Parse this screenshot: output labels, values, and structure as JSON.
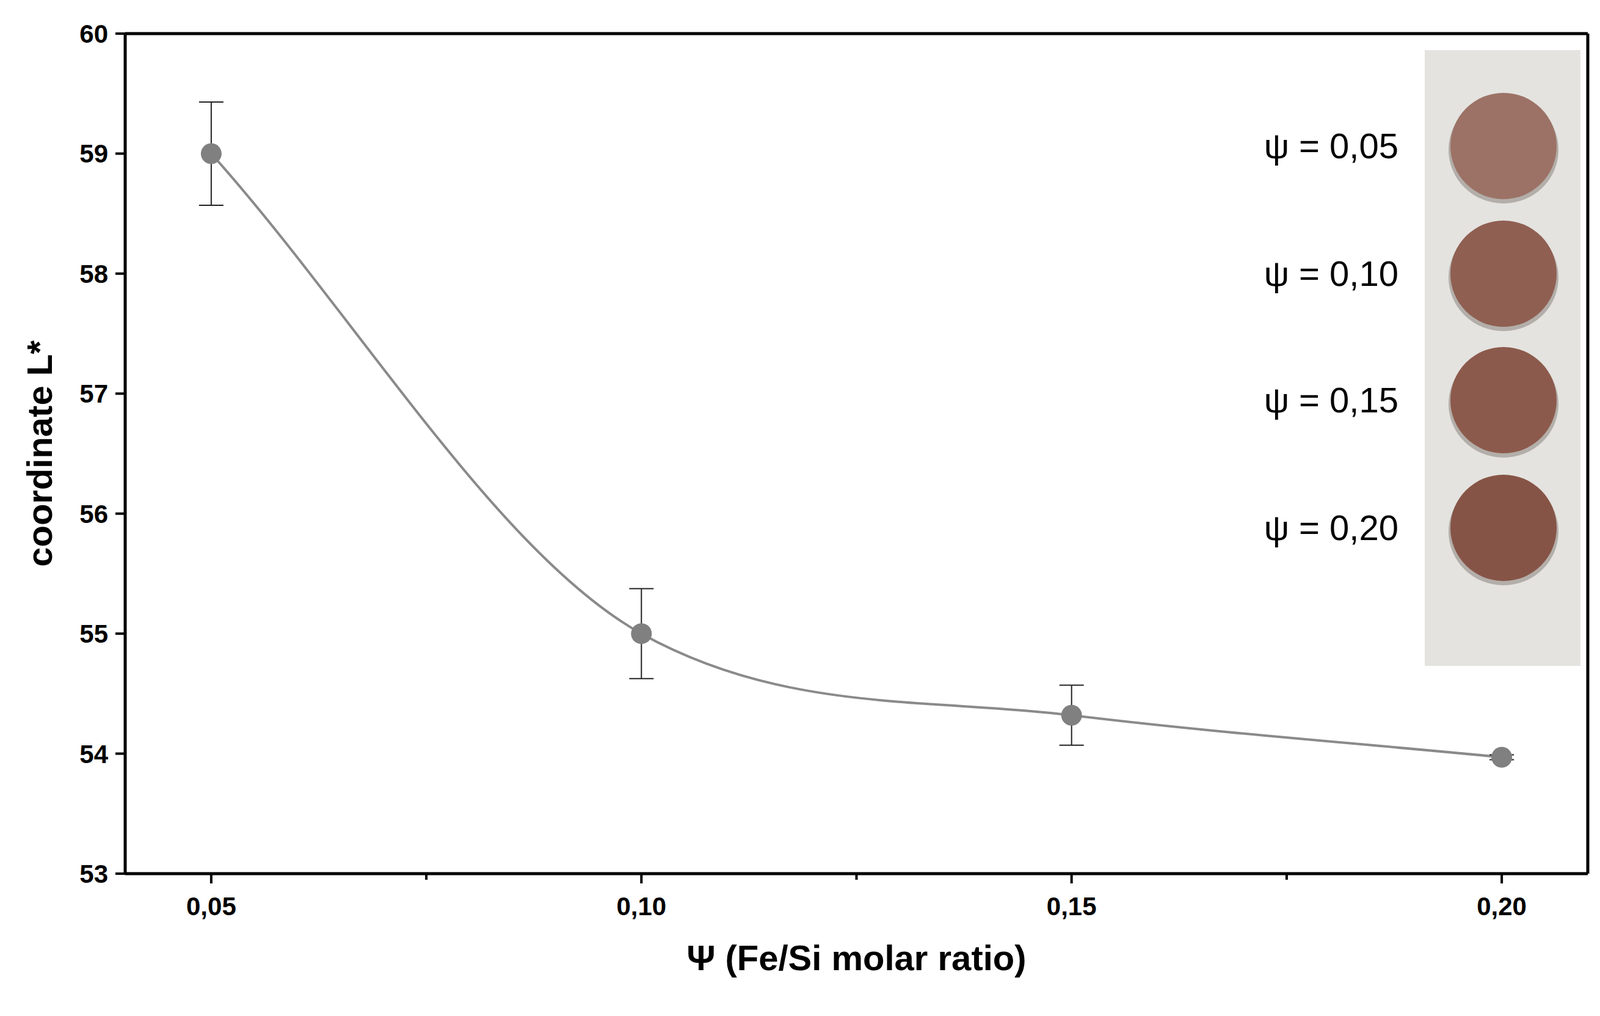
{
  "chart_data": {
    "type": "scatter",
    "x_label": "Ψ (Fe/Si molar ratio)",
    "y_label": "coordinate L*",
    "x": [
      0.05,
      0.1,
      0.15,
      0.2
    ],
    "values": [
      59.0,
      55.0,
      54.32,
      53.97
    ],
    "errors": [
      0.43,
      0.375,
      0.25,
      0.02
    ],
    "color": "#808080",
    "marker": "circle",
    "line_style": "smooth",
    "xlim": [
      0.04,
      0.21
    ],
    "xticks": [
      {
        "value": 0.05,
        "label": "0,05"
      },
      {
        "value": 0.1,
        "label": "0,10"
      },
      {
        "value": 0.15,
        "label": "0,15"
      },
      {
        "value": 0.2,
        "label": "0,20"
      }
    ],
    "ylim": [
      53,
      60
    ],
    "yticks": [
      53,
      54,
      55,
      56,
      57,
      58,
      59,
      60
    ],
    "grid": false,
    "annotations": [
      "ψ = 0,05",
      "ψ = 0,10",
      "ψ = 0,15",
      "ψ = 0,20"
    ]
  }
}
